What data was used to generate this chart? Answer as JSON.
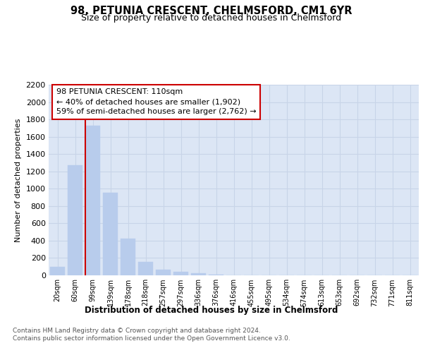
{
  "title": "98, PETUNIA CRESCENT, CHELMSFORD, CM1 6YR",
  "subtitle": "Size of property relative to detached houses in Chelmsford",
  "xlabel": "Distribution of detached houses by size in Chelmsford",
  "ylabel": "Number of detached properties",
  "categories": [
    "20sqm",
    "60sqm",
    "99sqm",
    "139sqm",
    "178sqm",
    "218sqm",
    "257sqm",
    "297sqm",
    "336sqm",
    "376sqm",
    "416sqm",
    "455sqm",
    "495sqm",
    "534sqm",
    "574sqm",
    "613sqm",
    "653sqm",
    "692sqm",
    "732sqm",
    "771sqm",
    "811sqm"
  ],
  "values": [
    100,
    1270,
    1730,
    950,
    420,
    155,
    65,
    40,
    25,
    8,
    3,
    2,
    1,
    0,
    0,
    0,
    0,
    0,
    0,
    0,
    0
  ],
  "bar_color": "#b8ccec",
  "bar_edgecolor": "#b8ccec",
  "grid_color": "#c8d4e8",
  "background_color": "#dce6f5",
  "ylim": [
    0,
    2200
  ],
  "yticks": [
    0,
    200,
    400,
    600,
    800,
    1000,
    1200,
    1400,
    1600,
    1800,
    2000,
    2200
  ],
  "property_line_color": "#cc0000",
  "annotation_text": "98 PETUNIA CRESCENT: 110sqm\n← 40% of detached houses are smaller (1,902)\n59% of semi-detached houses are larger (2,762) →",
  "annotation_box_facecolor": "#ffffff",
  "annotation_box_edgecolor": "#cc0000",
  "footnote1": "Contains HM Land Registry data © Crown copyright and database right 2024.",
  "footnote2": "Contains public sector information licensed under the Open Government Licence v3.0."
}
